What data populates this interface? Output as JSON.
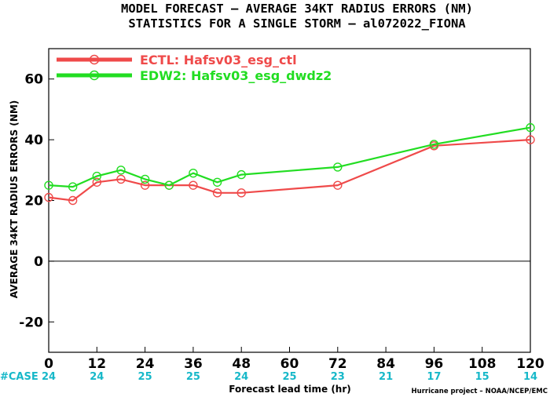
{
  "chart_data": {
    "type": "line",
    "title": "MODEL FORECAST – AVERAGE 34KT RADIUS ERRORS (NM)",
    "subtitle": "STATISTICS FOR A SINGLE STORM – al072022_FIONA",
    "xlabel": "Forecast lead time (hr)",
    "ylabel": "AVERAGE 34KT RADIUS ERRORS (NM)",
    "xlim": [
      0,
      120
    ],
    "ylim": [
      -30,
      70
    ],
    "x_ticks": [
      0,
      12,
      24,
      36,
      48,
      60,
      72,
      84,
      96,
      108,
      120
    ],
    "y_ticks": [
      -20,
      0,
      20,
      40,
      60
    ],
    "zero_line": true,
    "legend_position": "top-left",
    "case_label": "#CASE",
    "case_counts": [
      {
        "x": 0,
        "n": "24"
      },
      {
        "x": 12,
        "n": "24"
      },
      {
        "x": 24,
        "n": "25"
      },
      {
        "x": 36,
        "n": "25"
      },
      {
        "x": 48,
        "n": "24"
      },
      {
        "x": 60,
        "n": "25"
      },
      {
        "x": 72,
        "n": "23"
      },
      {
        "x": 84,
        "n": "21"
      },
      {
        "x": 96,
        "n": "17"
      },
      {
        "x": 108,
        "n": "15"
      },
      {
        "x": 120,
        "n": "14"
      }
    ],
    "series": [
      {
        "name": "ECTL: Hafsv03_esg_ctl",
        "color": "#ef4a4a",
        "x": [
          0,
          6,
          12,
          18,
          24,
          30,
          36,
          42,
          48,
          72,
          96,
          120
        ],
        "y": [
          21,
          20,
          26,
          27,
          25,
          25,
          25,
          22.5,
          22.5,
          25,
          38,
          40
        ]
      },
      {
        "name": "EDW2: Hafsv03_esg_dwdz2",
        "color": "#22dd22",
        "x": [
          0,
          6,
          12,
          18,
          24,
          30,
          36,
          42,
          48,
          72,
          96,
          120
        ],
        "y": [
          25,
          24.5,
          28,
          30,
          27,
          25,
          29,
          26,
          28.5,
          31,
          38.5,
          44
        ]
      }
    ]
  },
  "footer": {
    "credit": "Hurricane project – NOAA/NCEP/EMC"
  }
}
